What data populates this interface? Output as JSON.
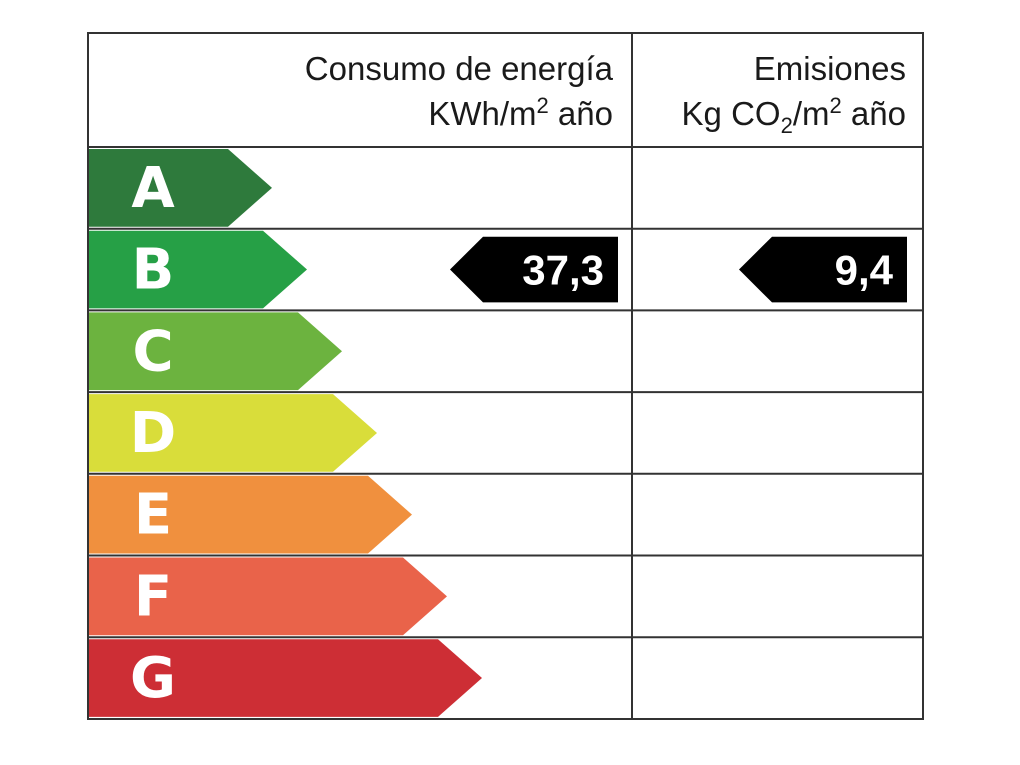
{
  "chart_data": {
    "type": "table",
    "columns": [
      {
        "title": "Consumo de energía",
        "unit_prefix": "KWh/m",
        "unit_sup": "2",
        "unit_suffix": " año"
      },
      {
        "title": "Emisiones",
        "unit_prefix": "Kg CO",
        "unit_sub": "2",
        "unit_mid": "/m",
        "unit_sup": "2",
        "unit_suffix": " año"
      }
    ],
    "ratings": [
      {
        "letter": "A",
        "color": "#2e7a3c"
      },
      {
        "letter": "B",
        "color": "#26a046"
      },
      {
        "letter": "C",
        "color": "#6cb33f"
      },
      {
        "letter": "D",
        "color": "#d9dd3a"
      },
      {
        "letter": "E",
        "color": "#f0903e"
      },
      {
        "letter": "F",
        "color": "#e9634a"
      },
      {
        "letter": "G",
        "color": "#cd2e35"
      }
    ],
    "energy_rating": "B",
    "energy_value": "37,3",
    "emissions_rating": "B",
    "emissions_value": "9,4",
    "marker_color": "#000000"
  }
}
